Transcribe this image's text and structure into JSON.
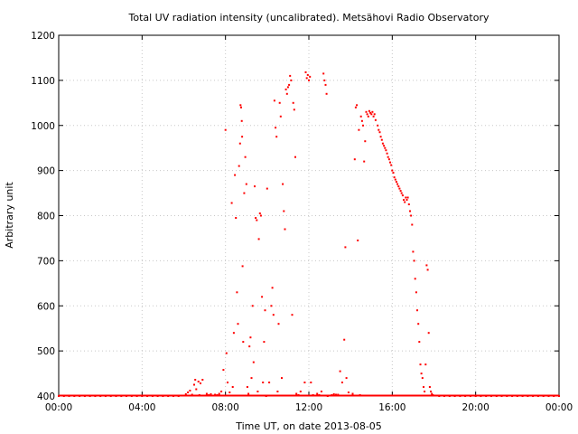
{
  "chart_data": {
    "type": "scatter",
    "title": "Total UV radiation intensity (uncalibrated). Metsähovi Radio Observatory",
    "xlabel": "Time UT, on date 2013-08-05",
    "ylabel": "Arbitrary unit",
    "xlim": [
      0,
      24
    ],
    "ylim": [
      400,
      1200
    ],
    "xticks": [
      0,
      4,
      8,
      12,
      16,
      20,
      24
    ],
    "xtick_labels": [
      "00:00",
      "04:00",
      "08:00",
      "12:00",
      "16:00",
      "20:00",
      "00:00"
    ],
    "yticks": [
      400,
      500,
      600,
      700,
      800,
      900,
      1000,
      1100,
      1200
    ],
    "ytick_labels": [
      "400",
      "500",
      "600",
      "700",
      "800",
      "900",
      "1000",
      "1100",
      "1200"
    ],
    "grid": true,
    "color": "#ff0000",
    "series": [
      {
        "points": [
          [
            0.0,
            400
          ],
          [
            0.25,
            400
          ],
          [
            0.5,
            400
          ],
          [
            0.75,
            400
          ],
          [
            1.0,
            400
          ],
          [
            1.25,
            400
          ],
          [
            1.5,
            400
          ],
          [
            1.75,
            400
          ],
          [
            2.0,
            400
          ],
          [
            2.25,
            400
          ],
          [
            2.5,
            400
          ],
          [
            2.75,
            400
          ],
          [
            3.0,
            400
          ],
          [
            3.25,
            400
          ],
          [
            3.5,
            400
          ],
          [
            3.75,
            400
          ],
          [
            4.0,
            400
          ],
          [
            4.25,
            400
          ],
          [
            4.5,
            400
          ],
          [
            4.75,
            400
          ],
          [
            5.0,
            400
          ],
          [
            5.25,
            400
          ],
          [
            5.5,
            400
          ],
          [
            5.75,
            400
          ],
          [
            6.0,
            401
          ],
          [
            6.1,
            404
          ],
          [
            6.2,
            408
          ],
          [
            6.3,
            412
          ],
          [
            6.4,
            403
          ],
          [
            6.5,
            425
          ],
          [
            6.55,
            436
          ],
          [
            6.6,
            415
          ],
          [
            6.7,
            432
          ],
          [
            6.75,
            402
          ],
          [
            6.8,
            428
          ],
          [
            6.9,
            436
          ],
          [
            7.0,
            401
          ],
          [
            7.1,
            405
          ],
          [
            7.2,
            402
          ],
          [
            7.3,
            404
          ],
          [
            7.4,
            401
          ],
          [
            7.5,
            403
          ],
          [
            7.6,
            402
          ],
          [
            7.7,
            405
          ],
          [
            7.8,
            410
          ],
          [
            7.9,
            458
          ],
          [
            8.0,
            990
          ],
          [
            8.05,
            495
          ],
          [
            8.1,
            430
          ],
          [
            8.2,
            408
          ],
          [
            8.3,
            828
          ],
          [
            8.35,
            420
          ],
          [
            8.4,
            540
          ],
          [
            8.45,
            890
          ],
          [
            8.5,
            795
          ],
          [
            8.55,
            630
          ],
          [
            8.6,
            560
          ],
          [
            8.65,
            910
          ],
          [
            8.7,
            960
          ],
          [
            8.72,
            1045
          ],
          [
            8.75,
            1040
          ],
          [
            8.78,
            1010
          ],
          [
            8.8,
            975
          ],
          [
            8.82,
            688
          ],
          [
            8.85,
            520
          ],
          [
            8.9,
            850
          ],
          [
            8.95,
            930
          ],
          [
            9.0,
            870
          ],
          [
            9.05,
            420
          ],
          [
            9.1,
            405
          ],
          [
            9.15,
            510
          ],
          [
            9.2,
            530
          ],
          [
            9.25,
            440
          ],
          [
            9.3,
            600
          ],
          [
            9.35,
            475
          ],
          [
            9.4,
            865
          ],
          [
            9.45,
            795
          ],
          [
            9.5,
            790
          ],
          [
            9.55,
            410
          ],
          [
            9.6,
            748
          ],
          [
            9.65,
            805
          ],
          [
            9.7,
            800
          ],
          [
            9.75,
            620
          ],
          [
            9.8,
            430
          ],
          [
            9.85,
            520
          ],
          [
            9.9,
            590
          ],
          [
            9.95,
            400
          ],
          [
            10.0,
            860
          ],
          [
            10.1,
            430
          ],
          [
            10.2,
            600
          ],
          [
            10.25,
            640
          ],
          [
            10.3,
            580
          ],
          [
            10.35,
            1055
          ],
          [
            10.4,
            995
          ],
          [
            10.45,
            975
          ],
          [
            10.5,
            410
          ],
          [
            10.55,
            560
          ],
          [
            10.6,
            1050
          ],
          [
            10.65,
            1020
          ],
          [
            10.7,
            440
          ],
          [
            10.75,
            870
          ],
          [
            10.8,
            810
          ],
          [
            10.85,
            770
          ],
          [
            10.9,
            1080
          ],
          [
            10.95,
            1070
          ],
          [
            11.0,
            1085
          ],
          [
            11.05,
            1090
          ],
          [
            11.1,
            1110
          ],
          [
            11.15,
            1100
          ],
          [
            11.2,
            580
          ],
          [
            11.25,
            1050
          ],
          [
            11.3,
            1035
          ],
          [
            11.35,
            930
          ],
          [
            11.4,
            405
          ],
          [
            11.5,
            402
          ],
          [
            11.6,
            410
          ],
          [
            11.7,
            401
          ],
          [
            11.8,
            430
          ],
          [
            11.85,
            1118
          ],
          [
            11.9,
            1105
          ],
          [
            11.95,
            1112
          ],
          [
            12.0,
            1100
          ],
          [
            12.05,
            1108
          ],
          [
            12.1,
            430
          ],
          [
            12.2,
            402
          ],
          [
            12.3,
            401
          ],
          [
            12.4,
            405
          ],
          [
            12.5,
            402
          ],
          [
            12.6,
            410
          ],
          [
            12.7,
            1115
          ],
          [
            12.75,
            1100
          ],
          [
            12.8,
            1090
          ],
          [
            12.85,
            1070
          ],
          [
            12.9,
            400
          ],
          [
            13.0,
            401
          ],
          [
            13.1,
            402
          ],
          [
            13.2,
            404
          ],
          [
            13.3,
            403
          ],
          [
            13.4,
            403
          ],
          [
            13.5,
            455
          ],
          [
            13.6,
            430
          ],
          [
            13.7,
            525
          ],
          [
            13.75,
            730
          ],
          [
            13.8,
            440
          ],
          [
            13.9,
            408
          ],
          [
            14.0,
            401
          ],
          [
            14.1,
            405
          ],
          [
            14.2,
            925
          ],
          [
            14.25,
            1040
          ],
          [
            14.3,
            1045
          ],
          [
            14.35,
            745
          ],
          [
            14.4,
            990
          ],
          [
            14.45,
            402
          ],
          [
            14.5,
            1020
          ],
          [
            14.55,
            1010
          ],
          [
            14.6,
            1000
          ],
          [
            14.65,
            920
          ],
          [
            14.7,
            965
          ],
          [
            14.75,
            1030
          ],
          [
            14.8,
            1025
          ],
          [
            14.85,
            1020
          ],
          [
            14.9,
            1032
          ],
          [
            14.95,
            1028
          ],
          [
            15.0,
            1025
          ],
          [
            15.05,
            1030
          ],
          [
            15.1,
            1020
          ],
          [
            15.15,
            1025
          ],
          [
            15.2,
            1012
          ],
          [
            15.3,
            1000
          ],
          [
            15.35,
            990
          ],
          [
            15.4,
            985
          ],
          [
            15.45,
            975
          ],
          [
            15.5,
            968
          ],
          [
            15.55,
            960
          ],
          [
            15.6,
            955
          ],
          [
            15.65,
            950
          ],
          [
            15.7,
            945
          ],
          [
            15.75,
            938
          ],
          [
            15.8,
            930
          ],
          [
            15.85,
            925
          ],
          [
            15.9,
            918
          ],
          [
            15.95,
            912
          ],
          [
            16.0,
            900
          ],
          [
            16.05,
            895
          ],
          [
            16.1,
            885
          ],
          [
            16.15,
            880
          ],
          [
            16.2,
            875
          ],
          [
            16.25,
            870
          ],
          [
            16.3,
            865
          ],
          [
            16.35,
            860
          ],
          [
            16.4,
            855
          ],
          [
            16.45,
            850
          ],
          [
            16.5,
            845
          ],
          [
            16.55,
            835
          ],
          [
            16.6,
            830
          ],
          [
            16.65,
            840
          ],
          [
            16.7,
            835
          ],
          [
            16.75,
            840
          ],
          [
            16.8,
            825
          ],
          [
            16.85,
            810
          ],
          [
            16.9,
            800
          ],
          [
            16.95,
            780
          ],
          [
            17.0,
            720
          ],
          [
            17.05,
            700
          ],
          [
            17.1,
            660
          ],
          [
            17.15,
            630
          ],
          [
            17.2,
            590
          ],
          [
            17.25,
            560
          ],
          [
            17.3,
            520
          ],
          [
            17.35,
            470
          ],
          [
            17.4,
            450
          ],
          [
            17.45,
            440
          ],
          [
            17.5,
            420
          ],
          [
            17.55,
            410
          ],
          [
            17.6,
            470
          ],
          [
            17.65,
            690
          ],
          [
            17.7,
            680
          ],
          [
            17.75,
            540
          ],
          [
            17.8,
            420
          ],
          [
            17.85,
            410
          ],
          [
            17.9,
            405
          ],
          [
            17.95,
            402
          ],
          [
            18.0,
            401
          ],
          [
            18.25,
            400
          ],
          [
            18.5,
            400
          ],
          [
            18.75,
            400
          ],
          [
            19.0,
            400
          ],
          [
            19.25,
            400
          ],
          [
            19.5,
            400
          ],
          [
            19.75,
            400
          ],
          [
            20.0,
            400
          ],
          [
            20.25,
            400
          ],
          [
            20.5,
            400
          ],
          [
            20.75,
            400
          ],
          [
            21.0,
            400
          ],
          [
            21.25,
            400
          ],
          [
            21.5,
            400
          ],
          [
            21.75,
            400
          ],
          [
            22.0,
            400
          ],
          [
            22.25,
            400
          ],
          [
            22.5,
            400
          ],
          [
            22.75,
            400
          ],
          [
            23.0,
            400
          ],
          [
            23.25,
            400
          ],
          [
            23.5,
            400
          ],
          [
            23.75,
            400
          ],
          [
            24.0,
            400
          ]
        ]
      }
    ]
  }
}
